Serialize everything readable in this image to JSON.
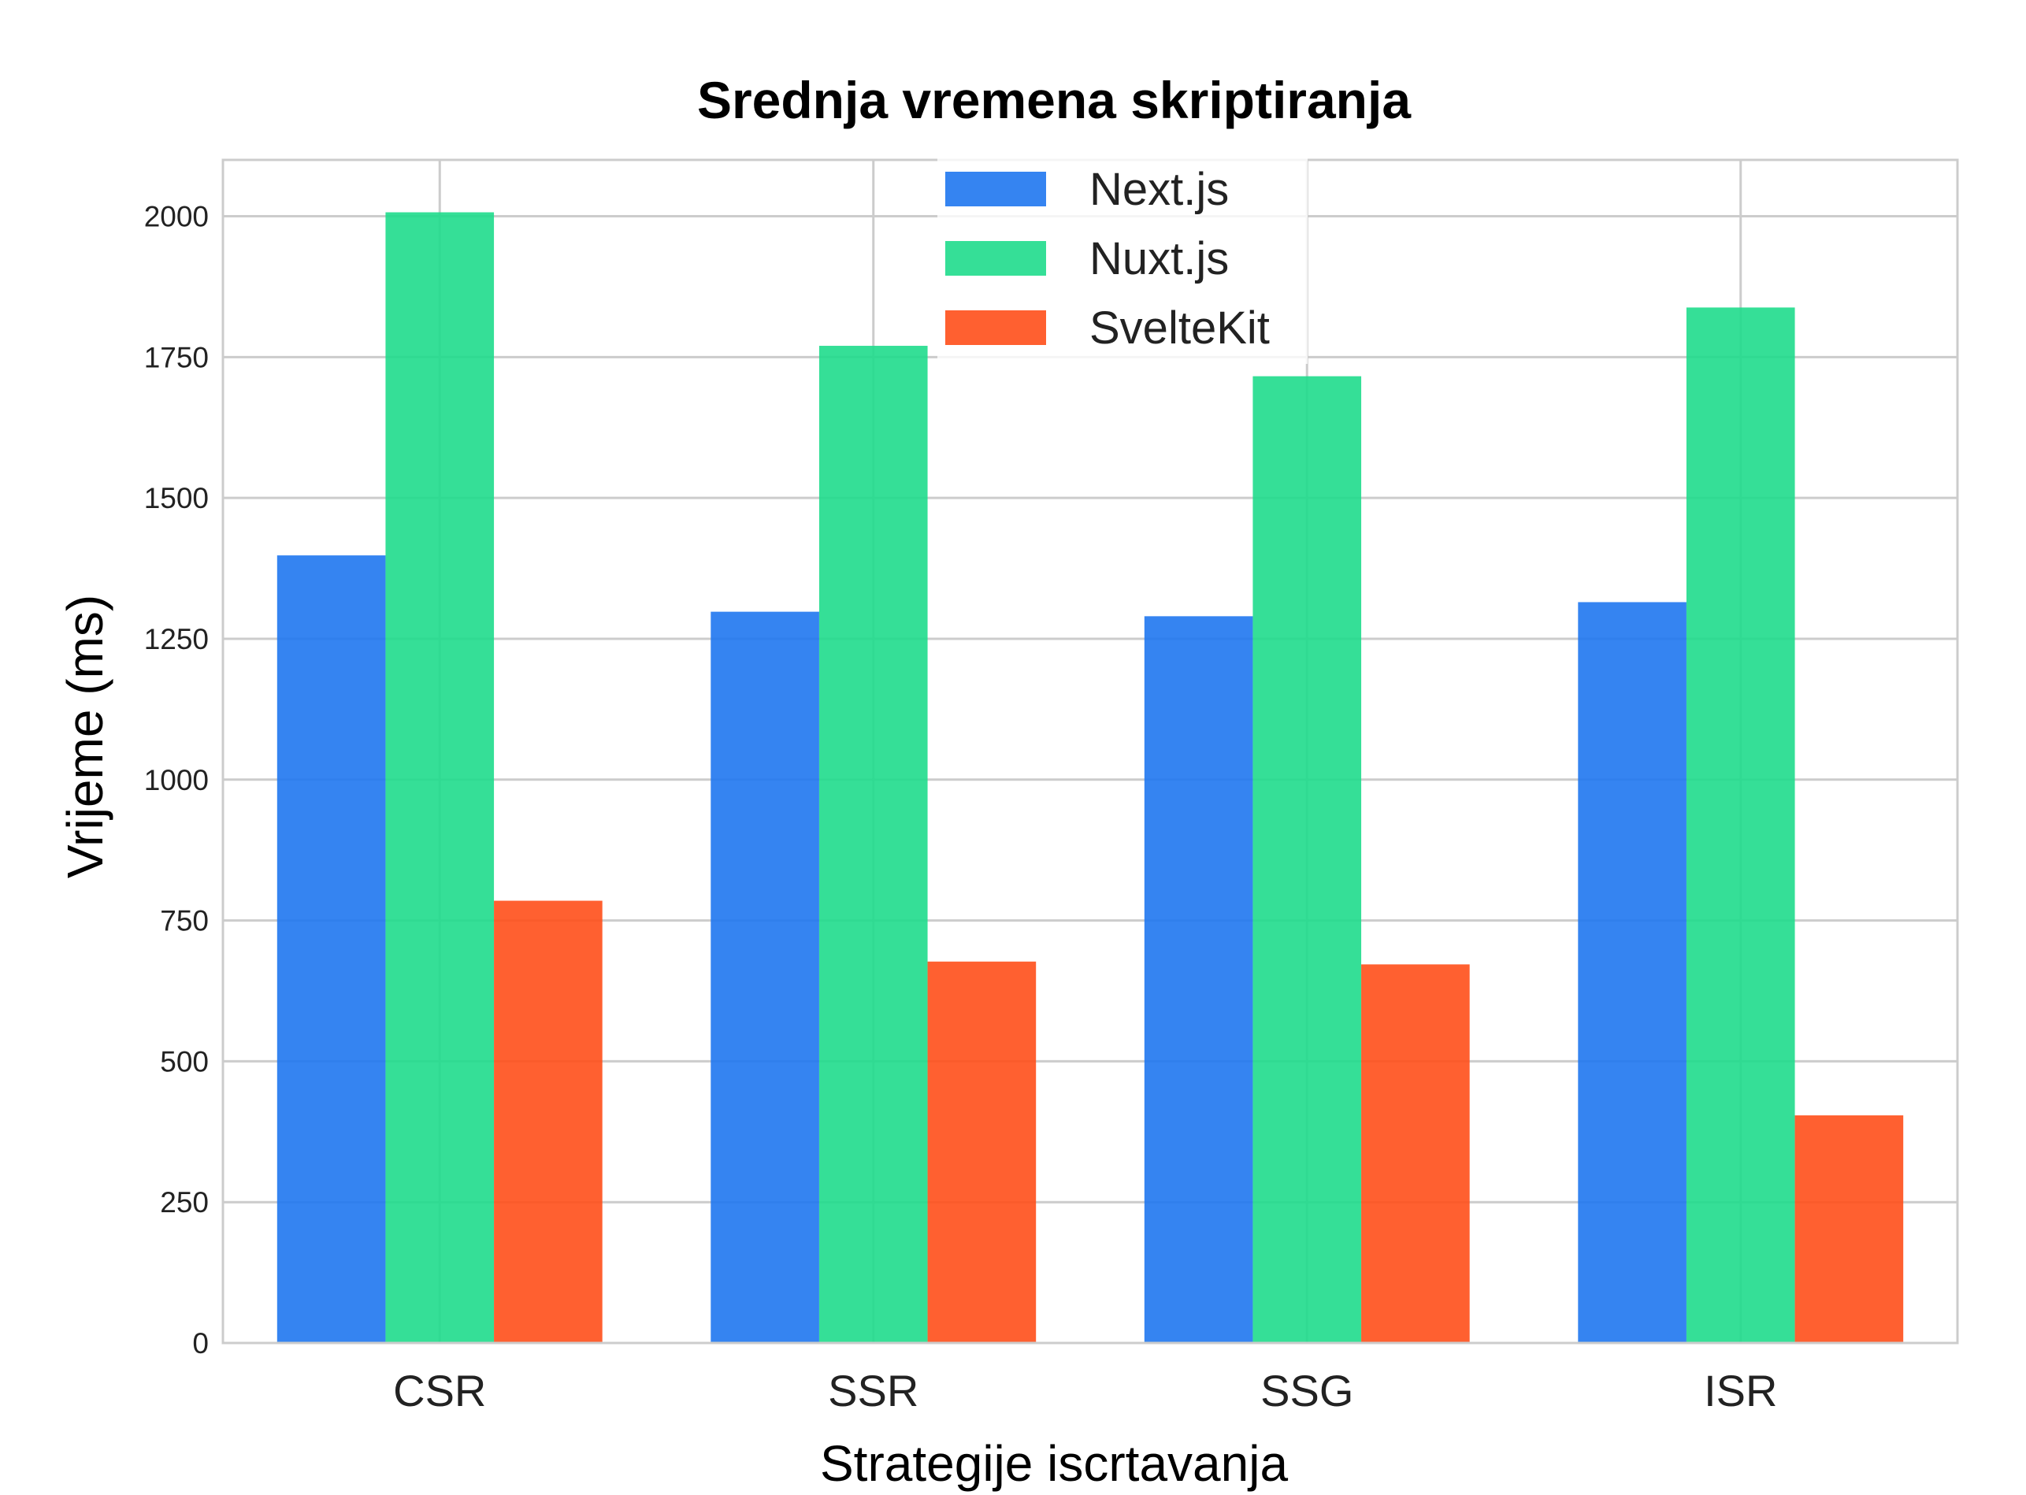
{
  "chart_data": {
    "type": "bar",
    "title": "Srednja vremena skriptiranja",
    "xlabel": "Strategije iscrtavanja",
    "ylabel": "Vrijeme (ms)",
    "categories": [
      "CSR",
      "SSR",
      "SSG",
      "ISR"
    ],
    "series": [
      {
        "name": "Next.js",
        "color": "#1f77f0",
        "values": [
          1398,
          1298,
          1290,
          1315
        ]
      },
      {
        "name": "Nuxt.js",
        "color": "#1fdc8c",
        "values": [
          2007,
          1770,
          1716,
          1838
        ]
      },
      {
        "name": "SvelteKit",
        "color": "#ff4f1a",
        "values": [
          785,
          677,
          672,
          404
        ]
      }
    ],
    "ylim": [
      0,
      2100
    ],
    "yticks": [
      0,
      250,
      500,
      750,
      1000,
      1250,
      1500,
      1750,
      2000
    ],
    "ytick_labels": [
      "0",
      "250",
      "500",
      "750",
      "1000",
      "1250",
      "1500",
      "1750",
      "2000"
    ],
    "grid": true,
    "legend_position": "top-center",
    "bar_opacity": 0.9,
    "colors": {
      "grid": "#cccccc",
      "frame": "#cccccc",
      "text": "#222222"
    }
  }
}
